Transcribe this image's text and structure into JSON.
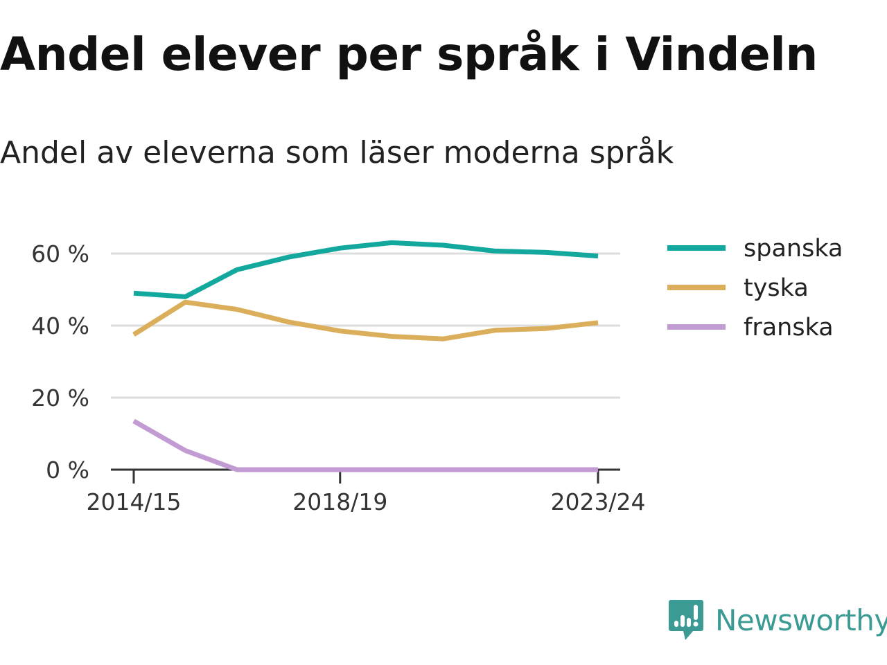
{
  "title": "Andel elever per språk i Vindeln",
  "subtitle": "Andel av eleverna som läser moderna språk",
  "brand": {
    "name": "Newsworthy",
    "icon": "newsworthy-logo-icon",
    "color": "#3b9a94"
  },
  "chart_data": {
    "type": "line",
    "x": [
      "2014/15",
      "2015/16",
      "2016/17",
      "2017/18",
      "2018/19",
      "2019/20",
      "2020/21",
      "2021/22",
      "2022/23",
      "2023/24"
    ],
    "x_tick_labels": [
      "2014/15",
      "2018/19",
      "2023/24"
    ],
    "ylim": [
      0,
      70
    ],
    "y_ticks": [
      0,
      20,
      40,
      60
    ],
    "y_tick_labels": [
      "0 %",
      "20 %",
      "40 %",
      "60 %"
    ],
    "grid": true,
    "legend_position": "right",
    "series": [
      {
        "name": "spanska",
        "color": "#13a89e",
        "values": [
          49,
          48,
          55.5,
          59,
          61.5,
          63,
          62.3,
          60.7,
          60.3,
          59.3
        ]
      },
      {
        "name": "tyska",
        "color": "#dbae5b",
        "values": [
          37.5,
          46.5,
          44.5,
          41,
          38.5,
          37,
          36.3,
          38.7,
          39.2,
          40.8
        ]
      },
      {
        "name": "franska",
        "color": "#c39bd3",
        "values": [
          13.5,
          5.3,
          0,
          0,
          0,
          0,
          0,
          0,
          0,
          0
        ]
      }
    ]
  }
}
